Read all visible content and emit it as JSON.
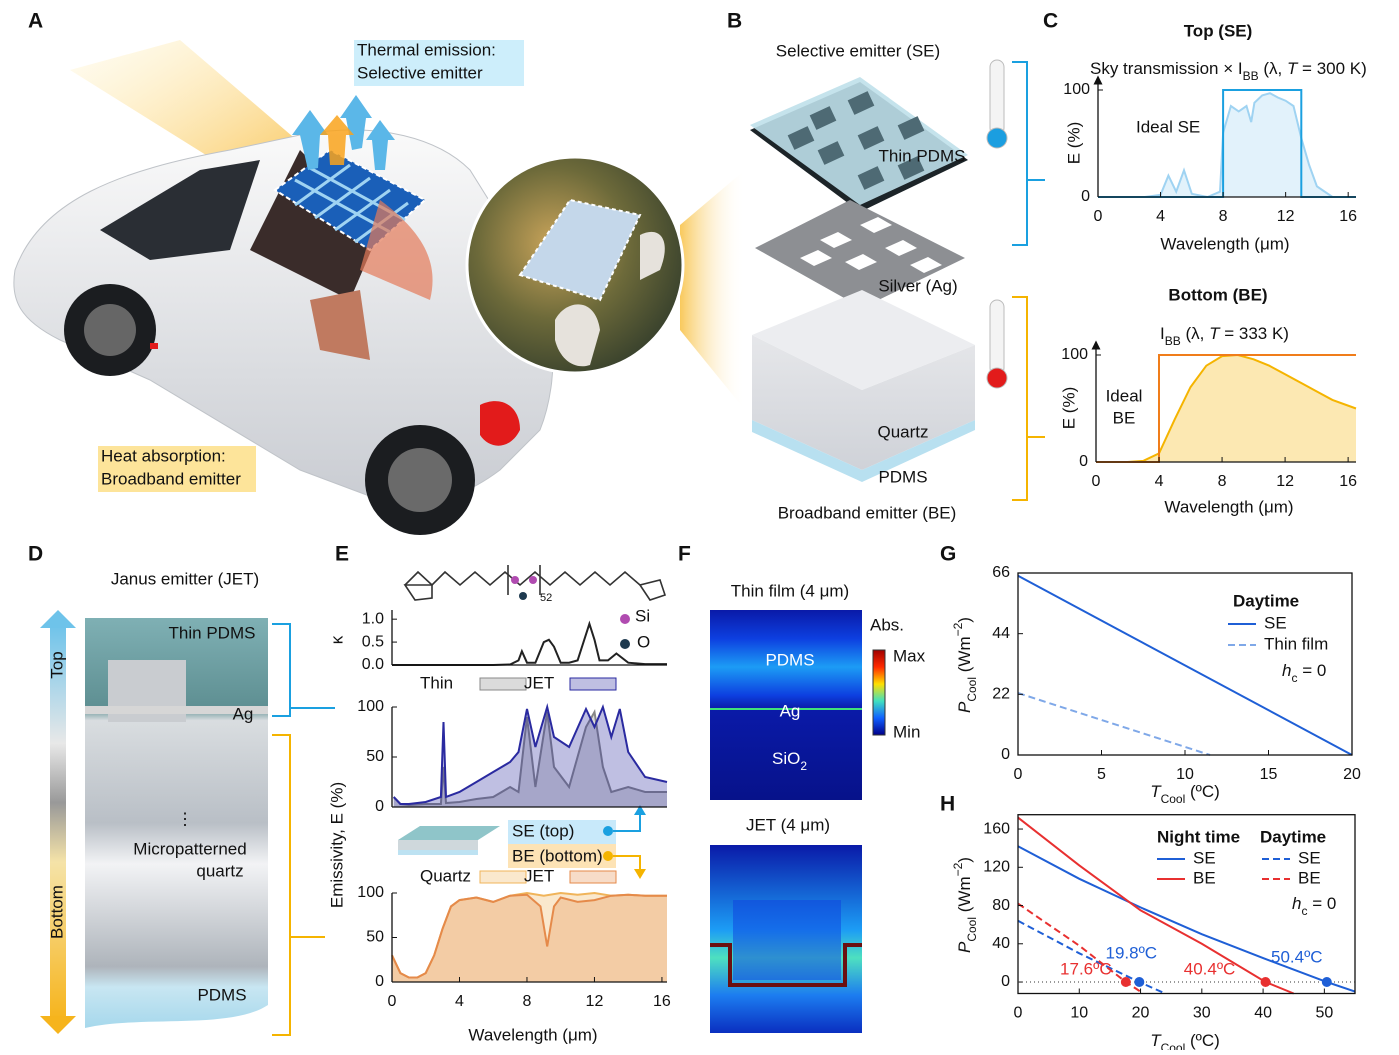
{
  "panel_labels": [
    "A",
    "B",
    "C",
    "D",
    "E",
    "F",
    "G",
    "H"
  ],
  "a": {
    "thermal": [
      "Thermal emission:",
      "Selective emitter"
    ],
    "heat": [
      "Heat absorption:",
      "Broadband emitter"
    ]
  },
  "b": {
    "top": "Selective emitter (SE)",
    "thin_pdms": "Thin PDMS",
    "silver": "Silver (Ag)",
    "quartz": "Quartz",
    "pdms": "PDMS",
    "bottom": "Broadband emitter (BE)"
  },
  "d": {
    "title": "Janus emitter (JET)",
    "top": "Top",
    "bottom": "Bottom",
    "thin_pdms": "Thin PDMS",
    "ag": "Ag",
    "dots": "⋮",
    "micro": [
      "Micropatterned",
      "quartz"
    ],
    "pdms": "PDMS"
  },
  "e": {
    "repeat": "52",
    "si": "Si",
    "o": "O",
    "ylabel": "Emissivity, E (%)",
    "se": "SE (top)",
    "be": "BE (bottom)"
  },
  "f": {
    "thin_title": "Thin film (4 μm)",
    "pdms": "PDMS",
    "ag": "Ag",
    "sio": [
      "SiO",
      "2"
    ],
    "abs": "Abs.",
    "max": "Max",
    "min": "Min",
    "jet_title": "JET (4 μm)"
  },
  "chart_data": [
    {
      "type": "line",
      "title": "Top (SE)",
      "xlabel": "Wavelength (μm)",
      "ylabel": "E (%)",
      "annotation": [
        "Sky transmission × I",
        "BB",
        " (λ, ",
        "T",
        " = 300 K)"
      ],
      "ideal_label": "Ideal SE",
      "xlim": [
        0,
        16.5
      ],
      "ylim": [
        0,
        100
      ],
      "xticks": [
        0,
        4,
        8,
        12,
        16
      ],
      "yticks": [
        0,
        100
      ],
      "series": [
        {
          "color": "#9fd3f2",
          "fill": true,
          "x": [
            3,
            4,
            4.5,
            5,
            5.5,
            6,
            7,
            7.8,
            8,
            8.5,
            9,
            9.5,
            9.8,
            10,
            10.5,
            11,
            11.5,
            12,
            12.5,
            13,
            13.5,
            14,
            15,
            16.5
          ],
          "values": [
            0,
            2,
            20,
            5,
            25,
            3,
            0,
            5,
            60,
            85,
            80,
            85,
            70,
            88,
            95,
            97,
            93,
            90,
            85,
            55,
            30,
            10,
            0,
            0
          ]
        },
        {
          "color": "#1aa0e0",
          "x": [
            0,
            8,
            8,
            13,
            13,
            16.5
          ],
          "values": [
            0,
            0,
            100,
            100,
            0,
            0
          ]
        }
      ]
    },
    {
      "type": "line",
      "title": "Bottom (BE)",
      "xlabel": "Wavelength (μm)",
      "ylabel": "E (%)",
      "annotation": [
        "I",
        "BB",
        " (λ, ",
        "T",
        " = 333 K)"
      ],
      "ideal_label": [
        "Ideal",
        "BE"
      ],
      "xlim": [
        0,
        16.5
      ],
      "ylim": [
        0,
        100
      ],
      "xticks": [
        0,
        4,
        8,
        12,
        16
      ],
      "yticks": [
        0,
        100
      ],
      "series": [
        {
          "color": "#f5b400",
          "fill": true,
          "x": [
            0,
            2,
            3,
            4,
            5,
            6,
            7,
            8,
            9,
            10,
            11,
            12,
            13,
            14,
            15,
            16.5
          ],
          "values": [
            0,
            0,
            1,
            8,
            40,
            70,
            90,
            99,
            100,
            96,
            90,
            82,
            74,
            66,
            58,
            50
          ]
        },
        {
          "color": "#f07d1a",
          "x": [
            0,
            4,
            4,
            16.5
          ],
          "values": [
            0,
            0,
            100,
            100
          ]
        }
      ]
    },
    {
      "type": "line",
      "ylabel": "κ",
      "xlim": [
        0,
        16.3
      ],
      "ylim": [
        0,
        1.2
      ],
      "yticks": [
        {
          "value": 0,
          "label": "0.0"
        },
        {
          "value": 0.5,
          "label": "0.5"
        },
        {
          "value": 1,
          "label": "1.0"
        }
      ],
      "series": [
        {
          "color": "#222",
          "x": [
            0,
            6,
            7,
            7.5,
            7.7,
            8,
            8.5,
            9,
            9.3,
            9.6,
            10,
            10.5,
            11,
            11.7,
            12,
            12.3,
            12.8,
            13.3,
            14,
            15,
            16.3
          ],
          "values": [
            0,
            0,
            0.01,
            0.1,
            0.3,
            0.05,
            0.05,
            0.5,
            0.55,
            0.4,
            0.05,
            0.05,
            0.1,
            0.9,
            0.55,
            0.1,
            0.1,
            0.25,
            0.05,
            0.02,
            0.02
          ]
        }
      ]
    },
    {
      "type": "line",
      "xlim": [
        0,
        16.3
      ],
      "ylim": [
        0,
        100
      ],
      "yticks": [
        0,
        50,
        100
      ],
      "series": [
        {
          "name": "Thin",
          "color": "#888",
          "fill": true,
          "x": [
            0.1,
            0.5,
            1,
            2,
            2.9,
            3.05,
            3.2,
            4,
            5,
            6,
            7,
            7.5,
            8,
            8.5,
            9.2,
            9.6,
            10.5,
            11.5,
            12,
            12.5,
            13,
            14,
            15,
            16.3
          ],
          "values": [
            10,
            3,
            2,
            3,
            3,
            40,
            4,
            5,
            8,
            10,
            20,
            15,
            90,
            20,
            95,
            40,
            20,
            80,
            95,
            40,
            15,
            20,
            15,
            15
          ]
        },
        {
          "name": "JET",
          "color": "#2a2aa0",
          "fill": true,
          "x": [
            0.1,
            0.5,
            1,
            2,
            2.9,
            3.05,
            3.2,
            4,
            5,
            6,
            7,
            7.5,
            8,
            8.5,
            9.2,
            9.6,
            10.5,
            11.5,
            12,
            12.5,
            13,
            13.5,
            14,
            15,
            16.3
          ],
          "values": [
            10,
            3,
            3,
            5,
            10,
            85,
            10,
            15,
            25,
            35,
            45,
            55,
            98,
            60,
            100,
            70,
            60,
            98,
            80,
            100,
            70,
            98,
            55,
            30,
            25
          ]
        }
      ]
    },
    {
      "type": "line",
      "xlabel": "Wavelength (μm)",
      "xlim": [
        0,
        16.3
      ],
      "ylim": [
        0,
        100
      ],
      "xticks": [
        0,
        4,
        8,
        12,
        16
      ],
      "yticks": [
        0,
        50,
        100
      ],
      "series": [
        {
          "name": "Quartz",
          "color": "#f0b45a",
          "fill": true,
          "x": [
            0,
            0.5,
            1,
            1.5,
            2,
            2.5,
            3,
            3.5,
            4,
            5,
            6,
            7,
            8,
            9,
            10,
            11,
            12,
            13,
            14,
            15,
            16.3
          ],
          "values": [
            30,
            10,
            5,
            5,
            10,
            30,
            60,
            85,
            92,
            95,
            90,
            97,
            100,
            97,
            100,
            98,
            100,
            97,
            98,
            97,
            97
          ]
        },
        {
          "name": "JET",
          "color": "#e58a4a",
          "fill": true,
          "x": [
            0,
            0.5,
            1,
            1.5,
            2,
            2.5,
            3,
            3.5,
            4,
            5,
            6,
            7,
            8,
            8.8,
            9.2,
            9.6,
            10,
            11,
            12,
            13,
            14,
            15,
            16.3
          ],
          "values": [
            30,
            10,
            5,
            5,
            10,
            30,
            60,
            85,
            92,
            95,
            90,
            97,
            98,
            85,
            40,
            85,
            95,
            90,
            92,
            97,
            98,
            97,
            97
          ]
        }
      ]
    },
    {
      "type": "line",
      "xlabel": [
        "T",
        "Cool",
        " (ºC)"
      ],
      "ylabel": [
        "P",
        "Cool",
        " (Wm",
        "−2",
        ")"
      ],
      "legend_title": "Daytime",
      "note": [
        "h",
        "c",
        " = 0"
      ],
      "xlim": [
        0,
        20
      ],
      "ylim": [
        0,
        66
      ],
      "xticks": [
        0,
        5,
        10,
        15,
        20
      ],
      "yticks": [
        0,
        22,
        44,
        66
      ],
      "series": [
        {
          "name": "SE",
          "color": "#1f5fd6",
          "x": [
            0,
            20
          ],
          "values": [
            65,
            0
          ]
        },
        {
          "name": "Thin film",
          "color": "#7fa8e8",
          "dashed": true,
          "x": [
            0,
            11.5
          ],
          "values": [
            22.5,
            0
          ]
        }
      ]
    },
    {
      "type": "line",
      "xlabel": [
        "T",
        "Cool",
        " (ºC)"
      ],
      "ylabel": [
        "P",
        "Cool",
        " (Wm",
        "−2",
        ")"
      ],
      "legend_groups": [
        "Night time",
        "Daytime"
      ],
      "note": [
        "h",
        "c",
        " = 0"
      ],
      "xlim": [
        0,
        55
      ],
      "ylim": [
        -12,
        175
      ],
      "xticks": [
        0,
        10,
        20,
        30,
        40,
        50
      ],
      "yticks": [
        0,
        40,
        80,
        120,
        160
      ],
      "series": [
        {
          "name": "SE",
          "color": "#1f5fd6",
          "x": [
            0,
            10,
            20,
            30,
            40,
            50.4,
            55
          ],
          "values": [
            142,
            108,
            78,
            50,
            25,
            0,
            -10
          ]
        },
        {
          "name": "BE",
          "color": "#e83030",
          "x": [
            0,
            10,
            20,
            30,
            40.4,
            45
          ],
          "values": [
            172,
            122,
            75,
            40,
            0,
            -12
          ]
        },
        {
          "name": "SE",
          "color": "#1f5fd6",
          "dashed": true,
          "x": [
            0,
            10,
            19.8,
            24
          ],
          "values": [
            64,
            30,
            0,
            -12
          ]
        },
        {
          "name": "BE",
          "color": "#e83030",
          "dashed": true,
          "x": [
            0,
            10,
            17.6,
            20
          ],
          "values": [
            82,
            38,
            0,
            -10
          ]
        }
      ],
      "points": {
        "x": [
          19.8,
          50.4,
          17.6,
          40.4
        ],
        "y": [
          0,
          0,
          0,
          0
        ],
        "labels": [
          "19.8ºC",
          "50.4ºC",
          "17.6ºC",
          "40.4ºC"
        ],
        "colors": [
          "#1f5fd6",
          "#1f5fd6",
          "#e83030",
          "#e83030"
        ]
      }
    }
  ]
}
